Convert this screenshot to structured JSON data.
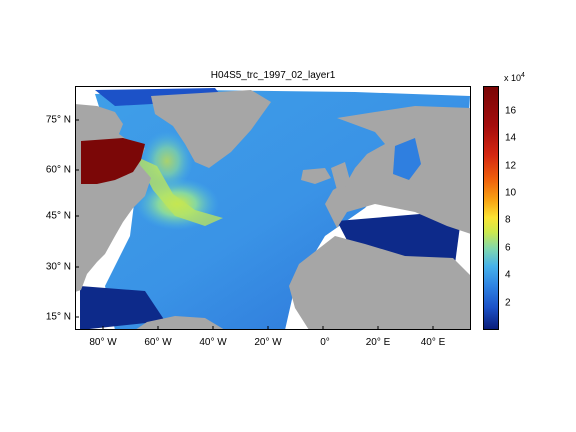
{
  "title": "H04S5_trc_1997_02_layer1",
  "colors": {
    "land": "#a6a6a6",
    "ocean_deep": "#0d2a8a",
    "ocean_low": "#2f7fe0",
    "ocean_mid": "#4fb0ea",
    "ocean_high": "#c9e84a",
    "peak": "#7b0707"
  },
  "x_ticks": [
    "80° W",
    "60° W",
    "40° W",
    "20° W",
    "0°",
    "20° E",
    "40° E"
  ],
  "y_ticks": [
    "75° N",
    "60° N",
    "45° N",
    "30° N",
    "15° N"
  ],
  "colorbar": {
    "multiplier": "x 10",
    "exponent": "4",
    "ticks": [
      "16",
      "14",
      "12",
      "10",
      "8",
      "6",
      "4",
      "2"
    ],
    "tick_values": [
      16,
      14,
      12,
      10,
      8,
      6,
      4,
      2
    ],
    "range": [
      0,
      17.8
    ]
  }
}
